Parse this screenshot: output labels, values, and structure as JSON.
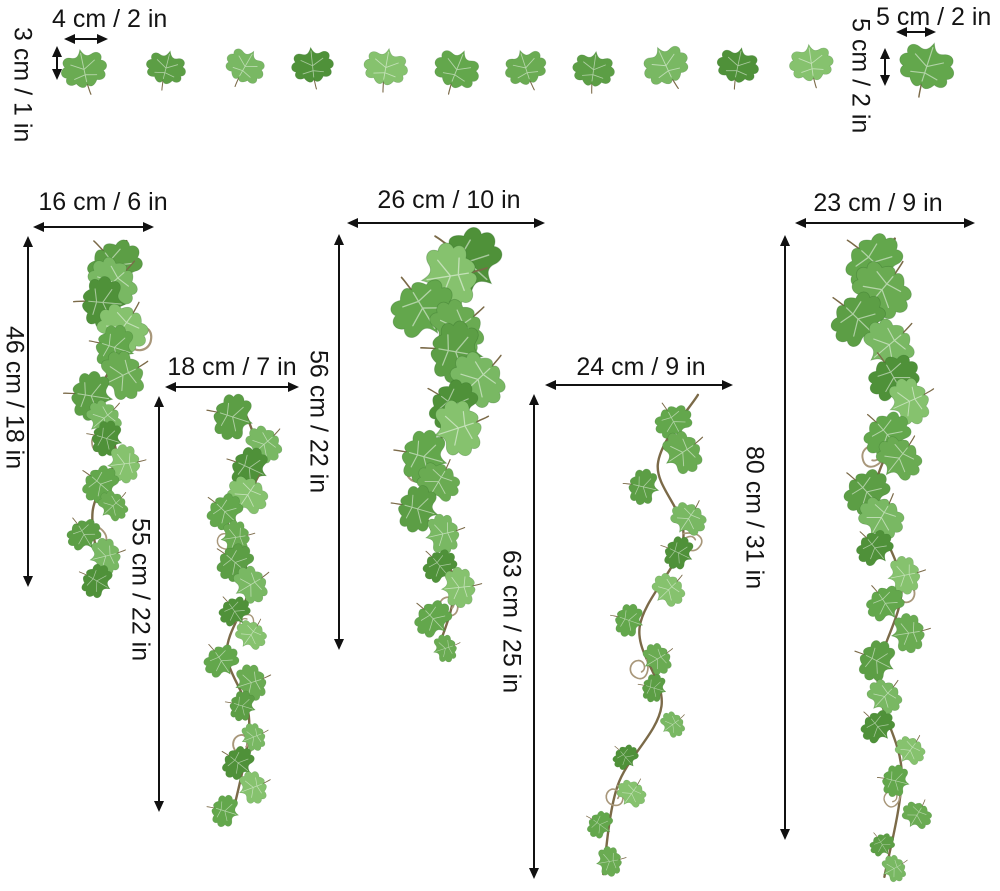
{
  "diagram": {
    "background": "#ffffff",
    "arrow_color": "#111111",
    "text_color": "#141414",
    "stem_color": "#7b6a48",
    "tendril_color": "#a8977a",
    "leaf_palette": [
      "#6aab52",
      "#5c9e45",
      "#79b863",
      "#4f9139",
      "#86c26e",
      "#63a74c"
    ],
    "top_row": {
      "leaf_count": 12,
      "left_leaf": {
        "width_label": "4 cm / 2 in",
        "height_label": "3 cm / 1 in"
      },
      "right_leaf": {
        "width_label": "5 cm / 2 in",
        "height_label": "5 cm / 2 in"
      }
    },
    "vines": [
      {
        "name": "vine-1",
        "width_label": "16 cm / 6 in",
        "height_label": "46 cm / 18 in"
      },
      {
        "name": "vine-2",
        "width_label": "18 cm / 7 in",
        "height_label": "55 cm / 22 in"
      },
      {
        "name": "vine-3",
        "width_label": "26 cm / 10 in",
        "height_label": "56 cm / 22 in"
      },
      {
        "name": "vine-4",
        "width_label": "24 cm / 9 in",
        "height_label": "63 cm / 25 in"
      },
      {
        "name": "vine-5",
        "width_label": "23 cm / 9 in",
        "height_label": "80 cm / 31 in"
      }
    ]
  }
}
